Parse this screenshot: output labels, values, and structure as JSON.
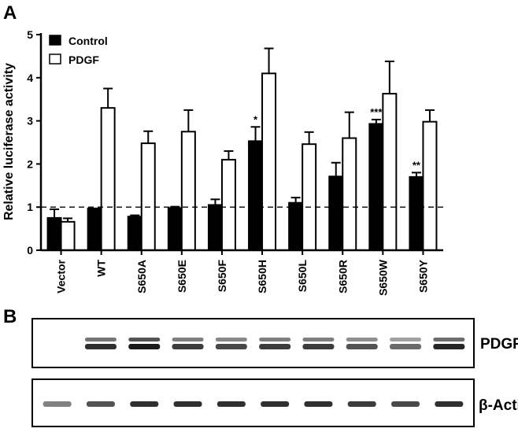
{
  "panels": {
    "a": "A",
    "b": "B"
  },
  "chart_data": {
    "type": "bar",
    "title": "",
    "xlabel": "",
    "ylabel": "Relative luciferase activity",
    "ylim": [
      0,
      5
    ],
    "yticks": [
      "0",
      "1",
      "2",
      "3",
      "4",
      "5"
    ],
    "reference_line": 1,
    "grid": false,
    "legend_position": "top-left",
    "categories": [
      "Vector",
      "WT",
      "S650A",
      "S650E",
      "S650F",
      "S650H",
      "S650L",
      "S650R",
      "S650W",
      "S650Y"
    ],
    "series": [
      {
        "name": "Control",
        "color": "#000000",
        "values": [
          0.75,
          0.97,
          0.78,
          0.98,
          1.05,
          2.53,
          1.1,
          1.71,
          2.93,
          1.7
        ],
        "errors": [
          0.2,
          0.0,
          0.03,
          0.03,
          0.13,
          0.33,
          0.12,
          0.32,
          0.1,
          0.1
        ]
      },
      {
        "name": "PDGF",
        "color": "#ffffff",
        "values": [
          0.66,
          3.3,
          2.48,
          2.75,
          2.1,
          4.1,
          2.46,
          2.6,
          3.63,
          2.98
        ],
        "errors": [
          0.08,
          0.45,
          0.28,
          0.5,
          0.2,
          0.58,
          0.28,
          0.6,
          0.75,
          0.27
        ]
      }
    ],
    "annotations": [
      "",
      "",
      "",
      "",
      "",
      "*",
      "",
      "",
      "***",
      "**"
    ]
  },
  "blots": {
    "pdgfr_label": "PDGFRβ",
    "actin_label": "β-Actin",
    "pdgfr_intensity": [
      0.0,
      0.8,
      1.0,
      0.75,
      0.7,
      0.75,
      0.75,
      0.65,
      0.55,
      0.85
    ],
    "actin_intensity": [
      0.55,
      0.75,
      0.9,
      0.9,
      0.9,
      0.9,
      0.9,
      0.85,
      0.8,
      0.9
    ]
  },
  "colors": {
    "axis": "#000000",
    "band": "#1a1a1a"
  }
}
